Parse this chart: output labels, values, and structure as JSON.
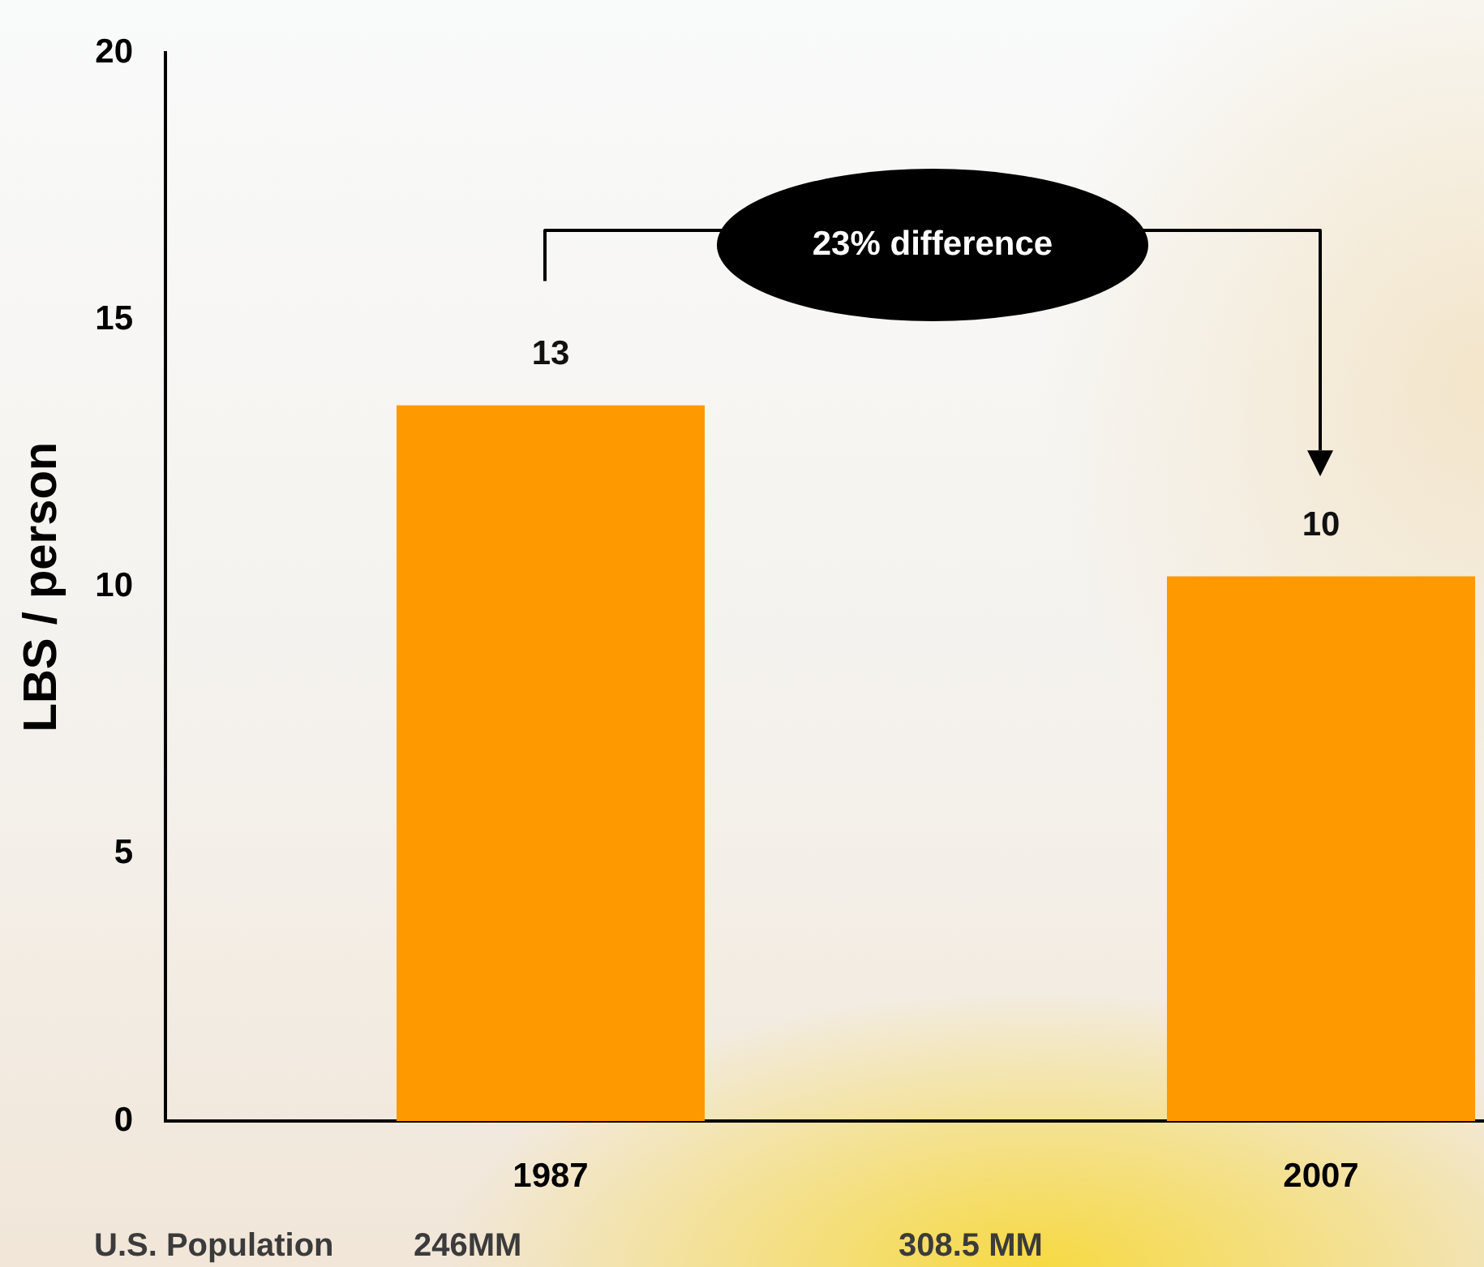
{
  "chart_data": {
    "type": "bar",
    "ylabel": "LBS / person",
    "categories": [
      "1987",
      "2007"
    ],
    "values": [
      13.4,
      10.2
    ],
    "color": "#ff9900",
    "value_labels": [
      "13",
      "10"
    ],
    "ylim": [
      0,
      20
    ],
    "yticks": [
      0,
      5,
      10,
      15,
      20
    ],
    "annotations": [
      "23% difference",
      "U.S. Population",
      "246MM",
      "308.5 MM"
    ]
  }
}
